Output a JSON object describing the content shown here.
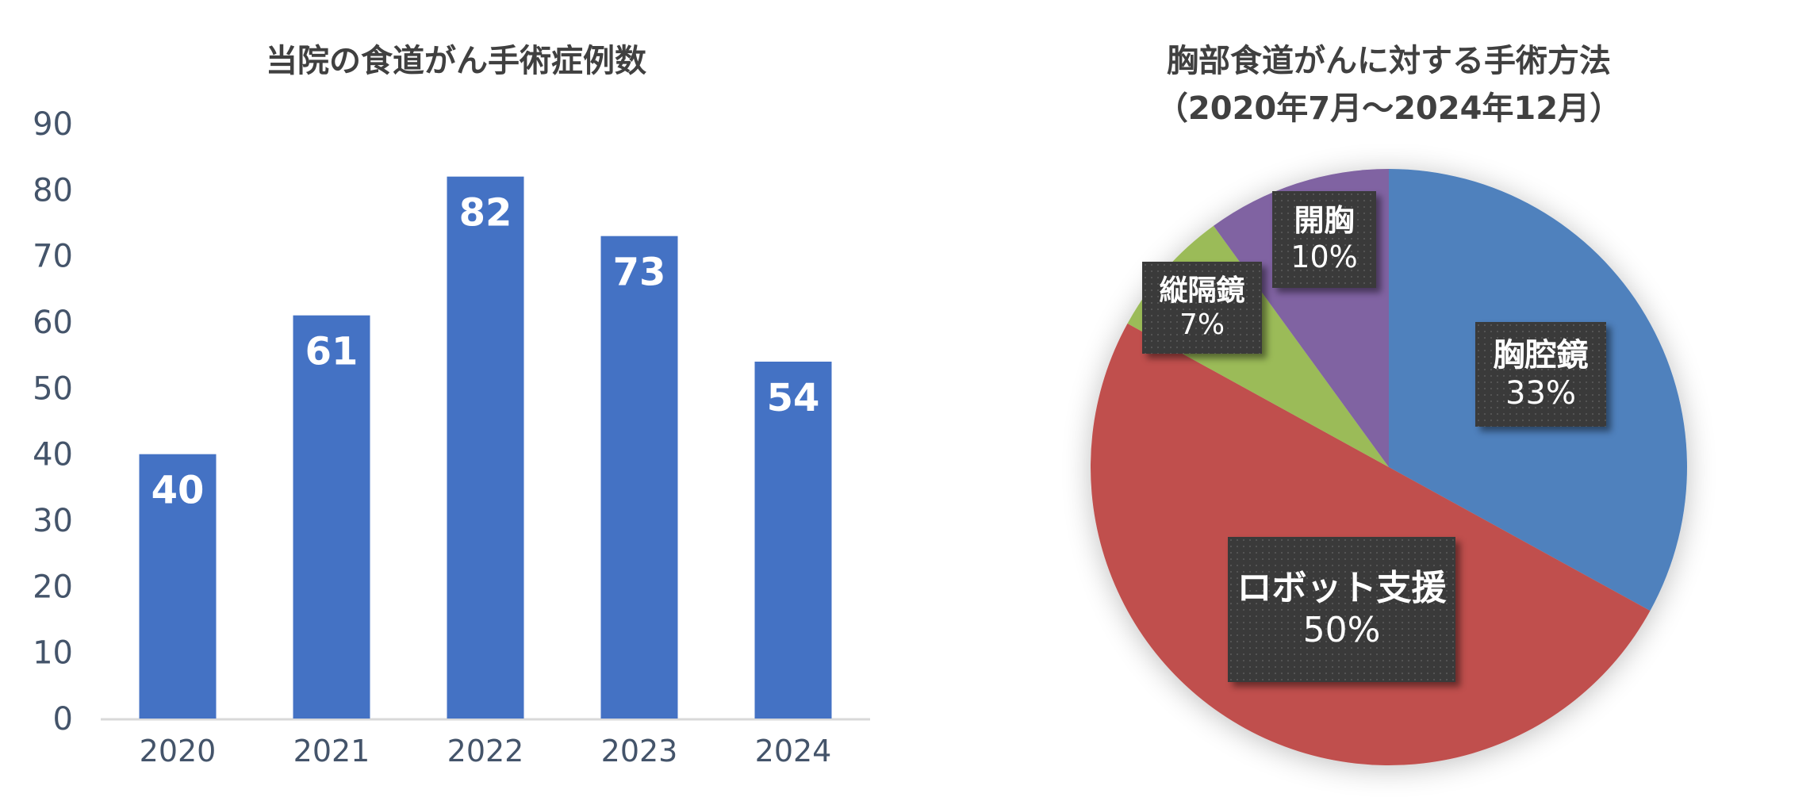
{
  "chart_data": [
    {
      "type": "bar",
      "title": "当院の食道がん手術症例数",
      "categories": [
        "2020",
        "2021",
        "2022",
        "2023",
        "2024"
      ],
      "values": [
        40,
        61,
        82,
        73,
        54
      ],
      "data_labels": [
        "40",
        "61",
        "82",
        "73",
        "54"
      ],
      "yticks": [
        "0",
        "10",
        "20",
        "30",
        "40",
        "50",
        "60",
        "70",
        "80",
        "90"
      ],
      "ylim": [
        0,
        90
      ],
      "grid": false,
      "color": "#4472C4"
    },
    {
      "type": "pie",
      "title": "胸部食道がんに対する手術方法",
      "subtitle": "（2020年7月～2024年12月）",
      "slices": [
        {
          "label": "胸腔鏡",
          "value": 33,
          "pct": "33%",
          "color": "#4F81BD"
        },
        {
          "label": "ロボット支援",
          "value": 50,
          "pct": "50%",
          "color": "#C0504D"
        },
        {
          "label": "縦隔鏡",
          "value": 7,
          "pct": "7%",
          "color": "#9BBB59"
        },
        {
          "label": "開胸",
          "value": 10,
          "pct": "10%",
          "color": "#8064A2"
        }
      ]
    }
  ]
}
